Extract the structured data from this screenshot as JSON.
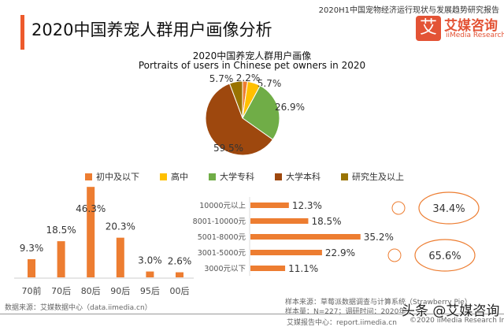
{
  "header": {
    "title": "2020中国养宠人群用户画像分析",
    "report": "2020H1中国宠物经济运行现状与发展趋势研究报告",
    "logo_cn": "艾媒咨询",
    "logo_en": "iiMedia Research",
    "logo_mark": "艾"
  },
  "chart_data": [
    {
      "type": "pie",
      "title": "2020中国养宠人群用户画像",
      "subtitle": "Portraits of users in Chinese pet owners in 2020",
      "categories": [
        "初中及以下",
        "高中",
        "大学专科",
        "大学本科",
        "研究生及以上"
      ],
      "values": [
        2.2,
        5.7,
        26.9,
        59.5,
        5.7
      ],
      "labels": [
        "2.2%",
        "5.7%",
        "26.9%",
        "59.5%",
        "5.7%"
      ],
      "colors": [
        "#ED7D31",
        "#FFC000",
        "#70AD47",
        "#9E480E",
        "#997300"
      ],
      "legend": "bottom"
    },
    {
      "type": "bar",
      "categories": [
        "70前",
        "70后",
        "80后",
        "90后",
        "95后",
        "00后"
      ],
      "values": [
        9.3,
        18.5,
        46.3,
        20.3,
        3.0,
        2.6
      ],
      "labels": [
        "9.3%",
        "18.5%",
        "46.3%",
        "20.3%",
        "3.0%",
        "2.6%"
      ],
      "color": "#ED7D31"
    },
    {
      "type": "bar",
      "orientation": "horizontal",
      "categories": [
        "10000元以上",
        "8001-10000元",
        "5001-8000元",
        "3001-5000元",
        "3000元以下"
      ],
      "values": [
        12.3,
        18.5,
        35.2,
        22.9,
        11.1
      ],
      "labels": [
        "12.3%",
        "18.5%",
        "35.2%",
        "22.9%",
        "11.1%"
      ],
      "color": "#ED7D31"
    },
    {
      "type": "pie",
      "categories": [
        "female",
        "male"
      ],
      "values": [
        34.4,
        65.6
      ],
      "labels": [
        "34.4%",
        "65.6%"
      ],
      "icons": [
        "female-icon",
        "male-icon"
      ]
    }
  ],
  "footer": {
    "source_left": "数据来源：艾媒数据中心（data.iimedia.cn）",
    "sample_source": "样本来源：草莓派数据调查与计算系统（Strawberry Pie）",
    "sample_size": "样本量：N=227；调研时间：2020年",
    "site": "艾媒报告中心：report.iimedia.cn",
    "copyright": "©2020  iiMedia Research  Inc",
    "watermark": "头条 @艾媒咨询"
  }
}
